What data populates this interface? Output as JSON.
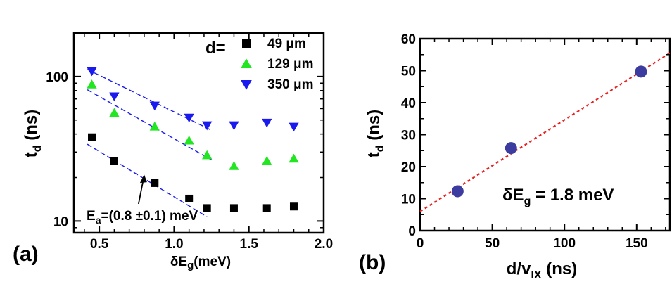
{
  "chart_data": [
    {
      "panel_label": "(a)",
      "type": "scatter",
      "xlabel": {
        "prefix": "δE",
        "sub": "g",
        "suffix": "(meV)"
      },
      "ylabel": {
        "main": "t",
        "sub": "d",
        "suffix": " (ns)"
      },
      "x_ticks": [
        "0.5",
        "1.0",
        "1.5",
        "2.0"
      ],
      "x_tick_values": [
        0.5,
        1.0,
        1.5,
        2.0
      ],
      "y_ticks": [
        "10",
        "100"
      ],
      "y_tick_values": [
        10,
        100
      ],
      "yscale": "log",
      "xlim": [
        0.33,
        2.0
      ],
      "ylim": [
        8.3,
        200
      ],
      "legend_title": "d=",
      "series": [
        {
          "name": "49 μm",
          "marker": "square",
          "color": "#000000",
          "x": [
            0.45,
            0.6,
            0.87,
            1.1,
            1.22,
            1.4,
            1.62,
            1.8
          ],
          "y": [
            38,
            26,
            18.3,
            14.3,
            12.3,
            12.3,
            12.3,
            12.6
          ]
        },
        {
          "name": "129 μm",
          "marker": "triangle-up",
          "color": "#22e622",
          "x": [
            0.45,
            0.6,
            0.87,
            1.1,
            1.22,
            1.4,
            1.62,
            1.8
          ],
          "y": [
            88,
            56,
            45,
            36,
            28.5,
            24,
            26,
            27
          ]
        },
        {
          "name": "350 μm",
          "marker": "triangle-down",
          "color": "#1a1aee",
          "x": [
            0.45,
            0.6,
            0.87,
            1.1,
            1.22,
            1.4,
            1.62,
            1.8
          ],
          "y": [
            109,
            73,
            63,
            52,
            46,
            46,
            48,
            45
          ]
        }
      ],
      "fit_lines": [
        {
          "color": "#1a1aee",
          "x": [
            0.42,
            1.22
          ],
          "y": [
            34,
            10.7
          ]
        },
        {
          "color": "#1a1aee",
          "x": [
            0.42,
            1.25
          ],
          "y": [
            81,
            26.5
          ]
        },
        {
          "color": "#1a1aee",
          "x": [
            0.42,
            1.25
          ],
          "y": [
            112,
            42.5
          ]
        }
      ],
      "annotation": {
        "prefix": "E",
        "sub": "a",
        "text": "=(0.8 ±0.1) meV",
        "arrow_to_x": 0.8,
        "arrow_to_y": 21
      }
    },
    {
      "panel_label": "(b)",
      "type": "scatter",
      "xlabel": {
        "prefix": "d/v",
        "sub": "IX",
        "suffix": " (ns)"
      },
      "ylabel": {
        "main": "t",
        "sub": "d",
        "suffix": " (ns)"
      },
      "x_ticks": [
        "0",
        "50",
        "100",
        "150"
      ],
      "x_tick_values": [
        0,
        50,
        100,
        150
      ],
      "y_ticks": [
        "0",
        "10",
        "20",
        "30",
        "40",
        "50",
        "60"
      ],
      "y_tick_values": [
        0,
        10,
        20,
        30,
        40,
        50,
        60
      ],
      "xlim": [
        0,
        173
      ],
      "ylim": [
        0,
        60
      ],
      "series": [
        {
          "name": "",
          "marker": "circle",
          "color": "#3c3ca0",
          "x": [
            26,
            63,
            153
          ],
          "y": [
            12.3,
            25.8,
            49.7
          ]
        }
      ],
      "fit_line": {
        "color": "#e82020",
        "x": [
          0,
          173
        ],
        "y": [
          6,
          55.5
        ]
      },
      "annotation": {
        "prefix": "δE",
        "sub": "g",
        "text": " = 1.8 meV"
      }
    }
  ]
}
